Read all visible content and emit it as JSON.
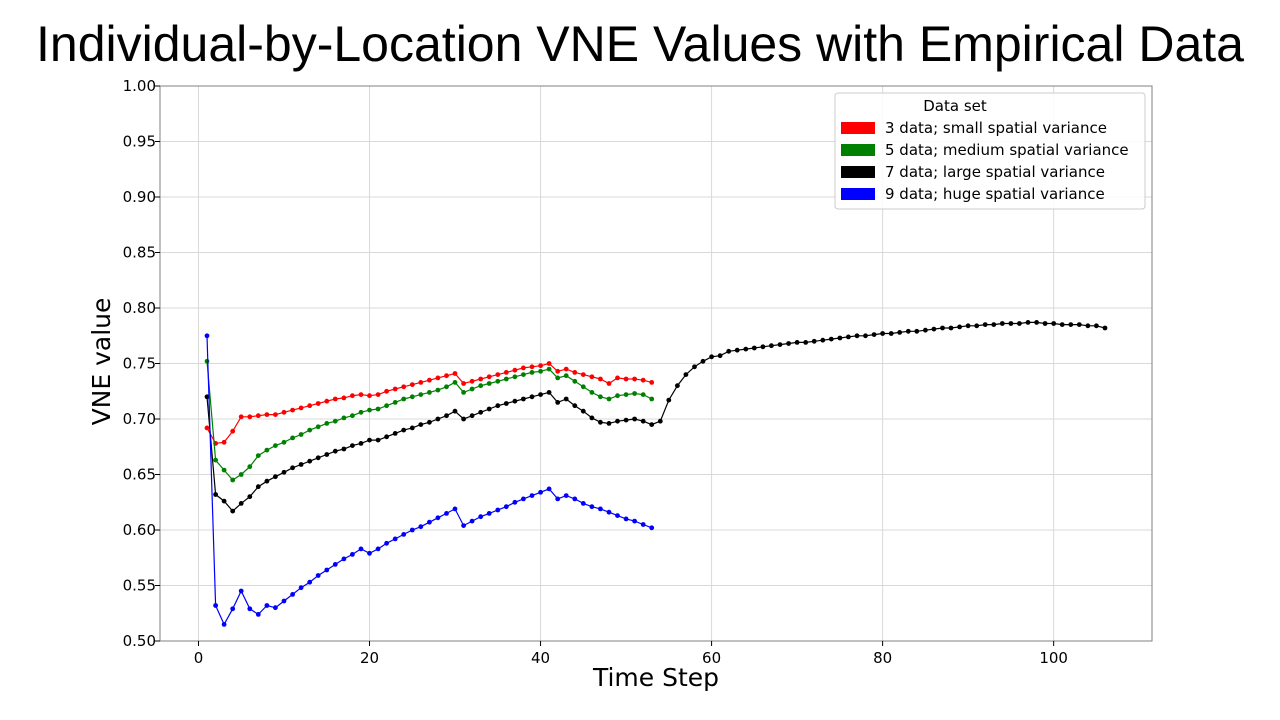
{
  "slide": {
    "title": "Individual-by-Location VNE Values with Empirical Data"
  },
  "chart_data": {
    "type": "line",
    "title": "",
    "xlabel": "Time Step",
    "ylabel": "VNE value",
    "xlim": [
      -4.5,
      111.5
    ],
    "ylim": [
      0.5,
      1.0
    ],
    "xticks": [
      0,
      20,
      40,
      60,
      80,
      100
    ],
    "yticks": [
      0.5,
      0.55,
      0.6,
      0.65,
      0.7,
      0.75,
      0.8,
      0.85,
      0.9,
      0.95,
      1.0
    ],
    "ytick_labels": [
      "0.50",
      "0.55",
      "0.60",
      "0.65",
      "0.70",
      "0.75",
      "0.80",
      "0.85",
      "0.90",
      "0.95",
      "1.00"
    ],
    "grid": true,
    "legend": {
      "title": "Data set",
      "placement": "top-right"
    },
    "series": [
      {
        "name": "3 data; small spatial variance",
        "color": "#ff0000",
        "x": [
          1,
          2,
          3,
          4,
          5,
          6,
          7,
          8,
          9,
          10,
          11,
          12,
          13,
          14,
          15,
          16,
          17,
          18,
          19,
          20,
          21,
          22,
          23,
          24,
          25,
          26,
          27,
          28,
          29,
          30,
          31,
          32,
          33,
          34,
          35,
          36,
          37,
          38,
          39,
          40,
          41,
          42,
          43,
          44,
          45,
          46,
          47,
          48,
          49,
          50,
          51,
          52,
          53
        ],
        "values": [
          0.692,
          0.678,
          0.679,
          0.689,
          0.702,
          0.702,
          0.703,
          0.704,
          0.704,
          0.706,
          0.708,
          0.71,
          0.712,
          0.714,
          0.716,
          0.718,
          0.719,
          0.721,
          0.722,
          0.721,
          0.722,
          0.725,
          0.727,
          0.729,
          0.731,
          0.733,
          0.735,
          0.737,
          0.739,
          0.741,
          0.732,
          0.734,
          0.736,
          0.738,
          0.74,
          0.742,
          0.744,
          0.746,
          0.747,
          0.748,
          0.75,
          0.743,
          0.745,
          0.742,
          0.74,
          0.738,
          0.736,
          0.732,
          0.737,
          0.736,
          0.736,
          0.735,
          0.733
        ]
      },
      {
        "name": "5 data; medium spatial variance",
        "color": "#008000",
        "x": [
          1,
          2,
          3,
          4,
          5,
          6,
          7,
          8,
          9,
          10,
          11,
          12,
          13,
          14,
          15,
          16,
          17,
          18,
          19,
          20,
          21,
          22,
          23,
          24,
          25,
          26,
          27,
          28,
          29,
          30,
          31,
          32,
          33,
          34,
          35,
          36,
          37,
          38,
          39,
          40,
          41,
          42,
          43,
          44,
          45,
          46,
          47,
          48,
          49,
          50,
          51,
          52,
          53
        ],
        "values": [
          0.752,
          0.663,
          0.654,
          0.645,
          0.65,
          0.657,
          0.667,
          0.672,
          0.676,
          0.679,
          0.683,
          0.686,
          0.69,
          0.693,
          0.696,
          0.698,
          0.701,
          0.703,
          0.706,
          0.708,
          0.709,
          0.712,
          0.715,
          0.718,
          0.72,
          0.722,
          0.724,
          0.726,
          0.729,
          0.733,
          0.724,
          0.727,
          0.73,
          0.732,
          0.734,
          0.736,
          0.738,
          0.74,
          0.742,
          0.743,
          0.745,
          0.737,
          0.739,
          0.734,
          0.729,
          0.724,
          0.72,
          0.718,
          0.721,
          0.722,
          0.723,
          0.722,
          0.718
        ]
      },
      {
        "name": "7 data; large spatial variance",
        "color": "#000000",
        "x": [
          1,
          2,
          3,
          4,
          5,
          6,
          7,
          8,
          9,
          10,
          11,
          12,
          13,
          14,
          15,
          16,
          17,
          18,
          19,
          20,
          21,
          22,
          23,
          24,
          25,
          26,
          27,
          28,
          29,
          30,
          31,
          32,
          33,
          34,
          35,
          36,
          37,
          38,
          39,
          40,
          41,
          42,
          43,
          44,
          45,
          46,
          47,
          48,
          49,
          50,
          51,
          52,
          53,
          54,
          55,
          56,
          57,
          58,
          59,
          60,
          61,
          62,
          63,
          64,
          65,
          66,
          67,
          68,
          69,
          70,
          71,
          72,
          73,
          74,
          75,
          76,
          77,
          78,
          79,
          80,
          81,
          82,
          83,
          84,
          85,
          86,
          87,
          88,
          89,
          90,
          91,
          92,
          93,
          94,
          95,
          96,
          97,
          98,
          99,
          100,
          101,
          102,
          103,
          104,
          105,
          106
        ],
        "values": [
          0.72,
          0.632,
          0.626,
          0.617,
          0.624,
          0.63,
          0.639,
          0.644,
          0.648,
          0.652,
          0.656,
          0.659,
          0.662,
          0.665,
          0.668,
          0.671,
          0.673,
          0.676,
          0.678,
          0.681,
          0.681,
          0.684,
          0.687,
          0.69,
          0.692,
          0.695,
          0.697,
          0.7,
          0.703,
          0.707,
          0.7,
          0.703,
          0.706,
          0.709,
          0.712,
          0.714,
          0.716,
          0.718,
          0.72,
          0.722,
          0.724,
          0.715,
          0.718,
          0.712,
          0.707,
          0.701,
          0.697,
          0.696,
          0.698,
          0.699,
          0.7,
          0.698,
          0.695,
          0.698,
          0.717,
          0.73,
          0.74,
          0.747,
          0.752,
          0.756,
          0.757,
          0.761,
          0.762,
          0.763,
          0.764,
          0.765,
          0.766,
          0.767,
          0.768,
          0.769,
          0.769,
          0.77,
          0.771,
          0.772,
          0.773,
          0.774,
          0.775,
          0.775,
          0.776,
          0.777,
          0.777,
          0.778,
          0.779,
          0.779,
          0.78,
          0.781,
          0.782,
          0.782,
          0.783,
          0.784,
          0.784,
          0.785,
          0.785,
          0.786,
          0.786,
          0.786,
          0.787,
          0.787,
          0.786,
          0.786,
          0.785,
          0.785,
          0.785,
          0.784,
          0.784,
          0.782
        ]
      },
      {
        "name": "9 data; huge spatial variance",
        "color": "#0000ff",
        "x": [
          1,
          2,
          3,
          4,
          5,
          6,
          7,
          8,
          9,
          10,
          11,
          12,
          13,
          14,
          15,
          16,
          17,
          18,
          19,
          20,
          21,
          22,
          23,
          24,
          25,
          26,
          27,
          28,
          29,
          30,
          31,
          32,
          33,
          34,
          35,
          36,
          37,
          38,
          39,
          40,
          41,
          42,
          43,
          44,
          45,
          46,
          47,
          48,
          49,
          50,
          51,
          52,
          53
        ],
        "values": [
          0.775,
          0.532,
          0.515,
          0.529,
          0.545,
          0.529,
          0.524,
          0.532,
          0.53,
          0.536,
          0.542,
          0.548,
          0.553,
          0.559,
          0.564,
          0.569,
          0.574,
          0.578,
          0.583,
          0.579,
          0.583,
          0.588,
          0.592,
          0.596,
          0.6,
          0.603,
          0.607,
          0.611,
          0.615,
          0.619,
          0.604,
          0.608,
          0.612,
          0.615,
          0.618,
          0.621,
          0.625,
          0.628,
          0.631,
          0.634,
          0.637,
          0.628,
          0.631,
          0.628,
          0.624,
          0.621,
          0.619,
          0.616,
          0.613,
          0.61,
          0.608,
          0.605,
          0.602
        ]
      }
    ]
  }
}
